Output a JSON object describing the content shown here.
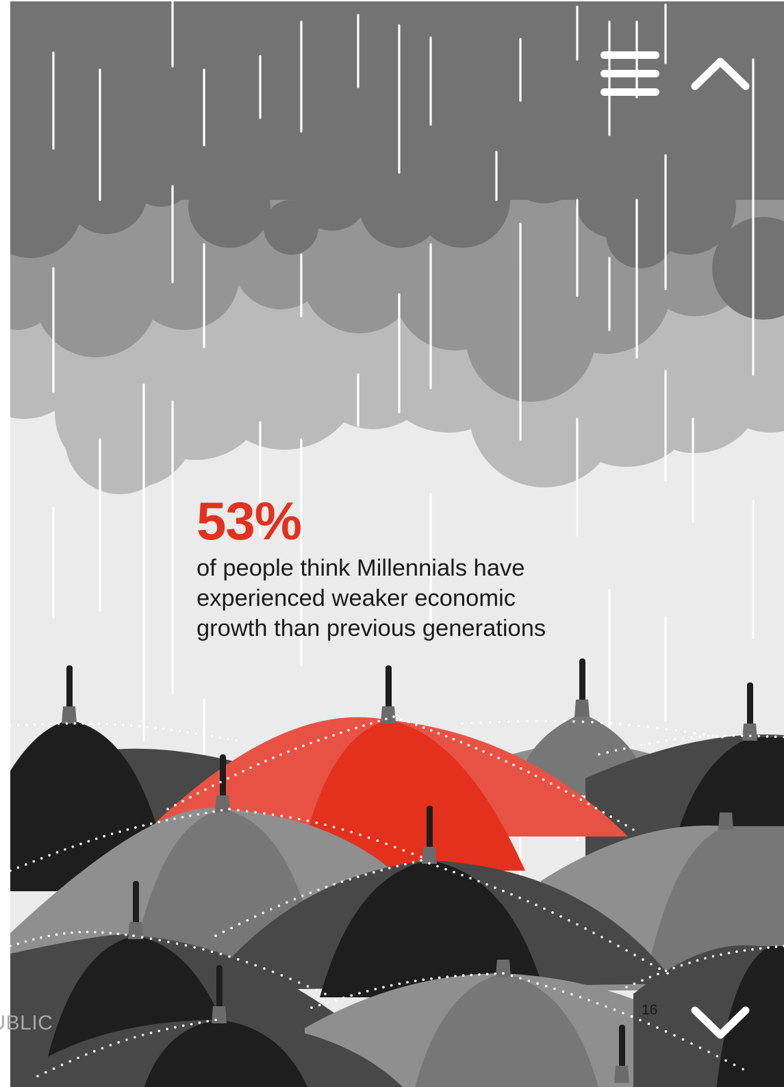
{
  "stat": {
    "value": "53%",
    "caption_lines": [
      "of people think Millennials have",
      "experienced weaker economic",
      "growth than previous generations"
    ]
  },
  "navigation": {
    "menu_icon": "hamburger-menu-icon",
    "up_icon": "chevron-up-icon",
    "down_icon": "chevron-down-icon"
  },
  "footer": {
    "page_number": "16",
    "classification": "PUBLIC"
  },
  "colors": {
    "accent_red": "#e3311d",
    "accent_red_light": "#e85244",
    "background": "#ebebeb",
    "cloud_dark": "#737373",
    "cloud_mid": "#959595",
    "cloud_light": "#bababa",
    "umbrella_black": "#1e1e1e",
    "umbrella_dark_grey": "#484848",
    "umbrella_grey": "#777777",
    "umbrella_light_grey": "#8f8f8f",
    "rain": "#ffffff"
  }
}
